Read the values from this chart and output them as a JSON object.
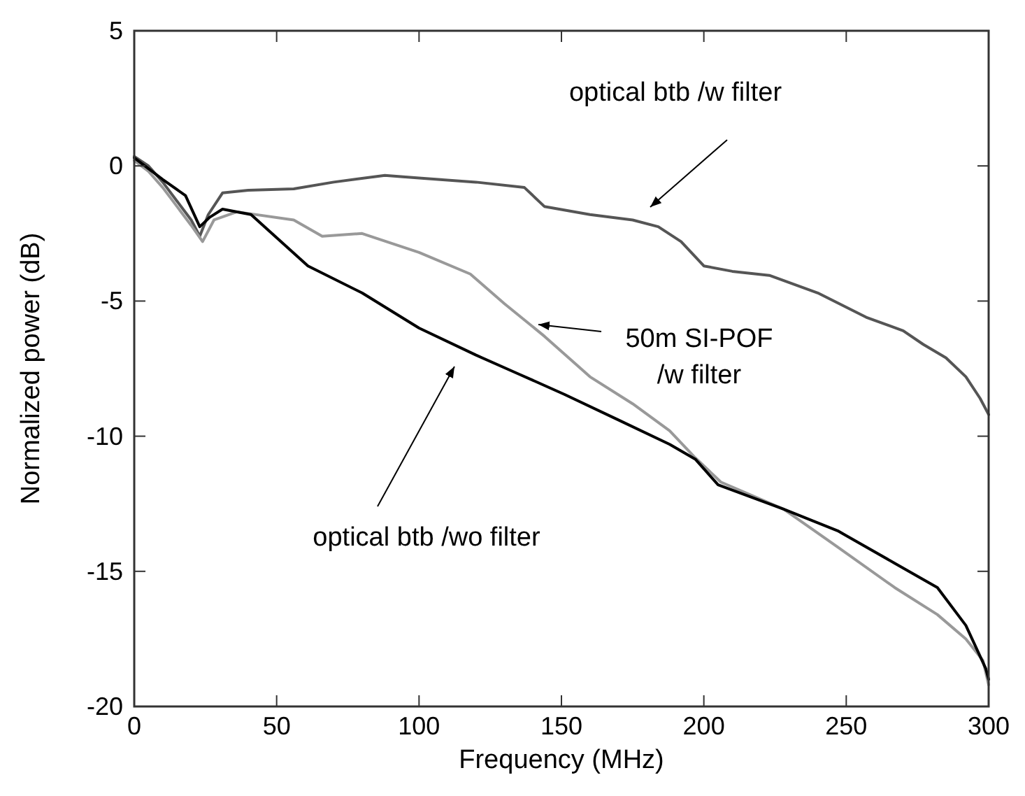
{
  "chart_data": {
    "type": "line",
    "xlabel": "Frequency (MHz)",
    "ylabel": "Normalized power (dB)",
    "xlim": [
      0,
      300
    ],
    "xticks": [
      0,
      50,
      100,
      150,
      200,
      250,
      300
    ],
    "ylim": [
      -20,
      5
    ],
    "yticks": [
      -20,
      -15,
      -10,
      -5,
      0,
      5
    ],
    "grid": false,
    "marker": "none",
    "line_style": "solid",
    "series": [
      {
        "color": "#555555",
        "x": [
          0,
          5,
          10,
          15,
          20,
          23,
          26,
          31,
          40,
          56,
          70,
          88,
          100,
          120,
          137,
          144,
          160,
          175,
          184,
          192,
          200,
          210,
          223,
          240,
          257,
          270,
          277,
          285,
          292,
          297,
          300
        ],
        "values": [
          0.35,
          0,
          -0.6,
          -1.3,
          -2.0,
          -2.6,
          -1.8,
          -1.0,
          -0.9,
          -0.85,
          -0.6,
          -0.35,
          -0.45,
          -0.6,
          -0.8,
          -1.5,
          -1.8,
          -2.0,
          -2.25,
          -2.8,
          -3.7,
          -3.9,
          -4.05,
          -4.7,
          -5.6,
          -6.1,
          -6.6,
          -7.1,
          -7.8,
          -8.6,
          -9.2
        ]
      },
      {
        "color": "#999999",
        "x": [
          0,
          5,
          10,
          15,
          20,
          24,
          28,
          36,
          56,
          66,
          80,
          100,
          118,
          130,
          144,
          160,
          175,
          188,
          197,
          206,
          228,
          247,
          267,
          282,
          292,
          298,
          300
        ],
        "values": [
          0.2,
          -0.2,
          -0.8,
          -1.5,
          -2.2,
          -2.8,
          -2.0,
          -1.7,
          -2.0,
          -2.6,
          -2.5,
          -3.2,
          -4.0,
          -5.1,
          -6.3,
          -7.8,
          -8.8,
          -9.8,
          -10.8,
          -11.7,
          -12.7,
          -14.1,
          -15.6,
          -16.6,
          -17.5,
          -18.3,
          -19.2
        ]
      },
      {
        "color": "#000000",
        "x": [
          0,
          5,
          10,
          18,
          23,
          26.5,
          31,
          41,
          61,
          80,
          100,
          120,
          135,
          151,
          170,
          188,
          197,
          205,
          228,
          247,
          267,
          282,
          292,
          299,
          300
        ],
        "values": [
          0.3,
          -0.1,
          -0.5,
          -1.1,
          -2.25,
          -1.9,
          -1.6,
          -1.8,
          -3.7,
          -4.7,
          -6.0,
          -7.0,
          -7.7,
          -8.45,
          -9.4,
          -10.3,
          -10.85,
          -11.8,
          -12.7,
          -13.5,
          -14.7,
          -15.6,
          -17.0,
          -18.6,
          -19.0
        ]
      }
    ],
    "annotations": [
      "optical btb /w filter",
      "50m SI-POF\n/w filter",
      "optical btb /wo filter"
    ]
  }
}
